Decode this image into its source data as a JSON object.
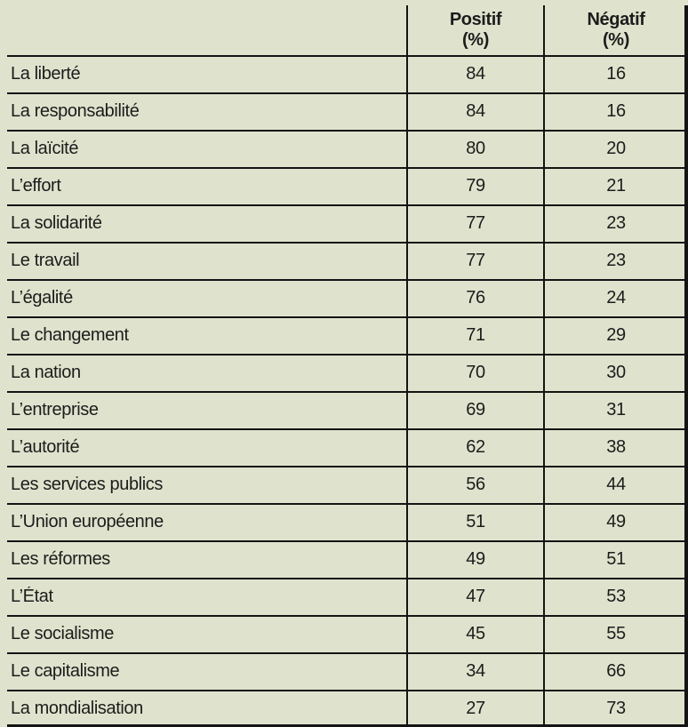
{
  "table": {
    "header": {
      "term_column": "",
      "positif_label": "Positif",
      "positif_unit": "(%)",
      "negatif_label": "Négatif",
      "negatif_unit": "(%)"
    },
    "rows": [
      {
        "label": "La liberté",
        "positif": "84",
        "negatif": "16"
      },
      {
        "label": "La responsabilité",
        "positif": "84",
        "negatif": "16"
      },
      {
        "label": "La laïcité",
        "positif": "80",
        "negatif": "20"
      },
      {
        "label": "L’effort",
        "positif": "79",
        "negatif": "21"
      },
      {
        "label": "La solidarité",
        "positif": "77",
        "negatif": "23"
      },
      {
        "label": "Le travail",
        "positif": "77",
        "negatif": "23"
      },
      {
        "label": "L’égalité",
        "positif": "76",
        "negatif": "24"
      },
      {
        "label": "Le changement",
        "positif": "71",
        "negatif": "29"
      },
      {
        "label": "La nation",
        "positif": "70",
        "negatif": "30"
      },
      {
        "label": "L’entreprise",
        "positif": "69",
        "negatif": "31"
      },
      {
        "label": "L’autorité",
        "positif": "62",
        "negatif": "38"
      },
      {
        "label": "Les services publics",
        "positif": "56",
        "negatif": "44"
      },
      {
        "label": "L’Union européenne",
        "positif": "51",
        "negatif": "49"
      },
      {
        "label": "Les réformes",
        "positif": "49",
        "negatif": "51"
      },
      {
        "label": "L’État",
        "positif": "47",
        "negatif": "53"
      },
      {
        "label": "Le socialisme",
        "positif": "45",
        "negatif": "55"
      },
      {
        "label": "Le capitalisme",
        "positif": "34",
        "negatif": "66"
      },
      {
        "label": "La mondialisation",
        "positif": "27",
        "negatif": "73"
      }
    ]
  },
  "colors": {
    "background": "#dfe3cd",
    "line": "#141414",
    "text": "#1c1c1c"
  },
  "chart_data": {
    "type": "table",
    "columns": [
      "",
      "Positif (%)",
      "Négatif (%)"
    ],
    "categories": [
      "La liberté",
      "La responsabilité",
      "La laïcité",
      "L’effort",
      "La solidarité",
      "Le travail",
      "L’égalité",
      "Le changement",
      "La nation",
      "L’entreprise",
      "L’autorité",
      "Les services publics",
      "L’Union européenne",
      "Les réformes",
      "L’État",
      "Le socialisme",
      "Le capitalisme",
      "La mondialisation"
    ],
    "series": [
      {
        "name": "Positif (%)",
        "values": [
          84,
          84,
          80,
          79,
          77,
          77,
          76,
          71,
          70,
          69,
          62,
          56,
          51,
          49,
          47,
          45,
          34,
          27
        ]
      },
      {
        "name": "Négatif (%)",
        "values": [
          16,
          16,
          20,
          21,
          23,
          23,
          24,
          29,
          30,
          31,
          38,
          44,
          49,
          51,
          53,
          55,
          66,
          73
        ]
      }
    ]
  }
}
